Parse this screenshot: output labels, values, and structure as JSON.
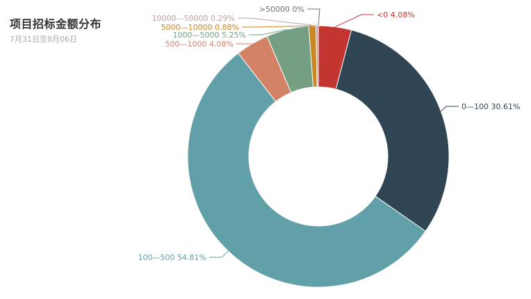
{
  "chart_data": {
    "type": "pie",
    "variant": "donut",
    "title": "项目招标金额分布",
    "subtitle": "7月31日至8月06日",
    "slices": [
      {
        "name": "<0",
        "percent": "4.08%",
        "value": 4.08,
        "color": "#c23531"
      },
      {
        "name": "0—100",
        "percent": "30.61%",
        "value": 30.61,
        "color": "#2f4554"
      },
      {
        "name": "100—500",
        "percent": "54.81%",
        "value": 54.81,
        "color": "#61a0a8"
      },
      {
        "name": "500—1000",
        "percent": "4.08%",
        "value": 4.08,
        "color": "#d48265"
      },
      {
        "name": "1000—5000",
        "percent": "5.25%",
        "value": 5.25,
        "color": "#749f83"
      },
      {
        "name": "5000—10000",
        "percent": "0.88%",
        "value": 0.88,
        "color": "#ca8622"
      },
      {
        "name": "10000—50000",
        "percent": "0.29%",
        "value": 0.29,
        "color": "#bda29a"
      },
      {
        "name": ">50000",
        "percent": "0%",
        "value": 0,
        "color": "#6e7074"
      }
    ]
  }
}
